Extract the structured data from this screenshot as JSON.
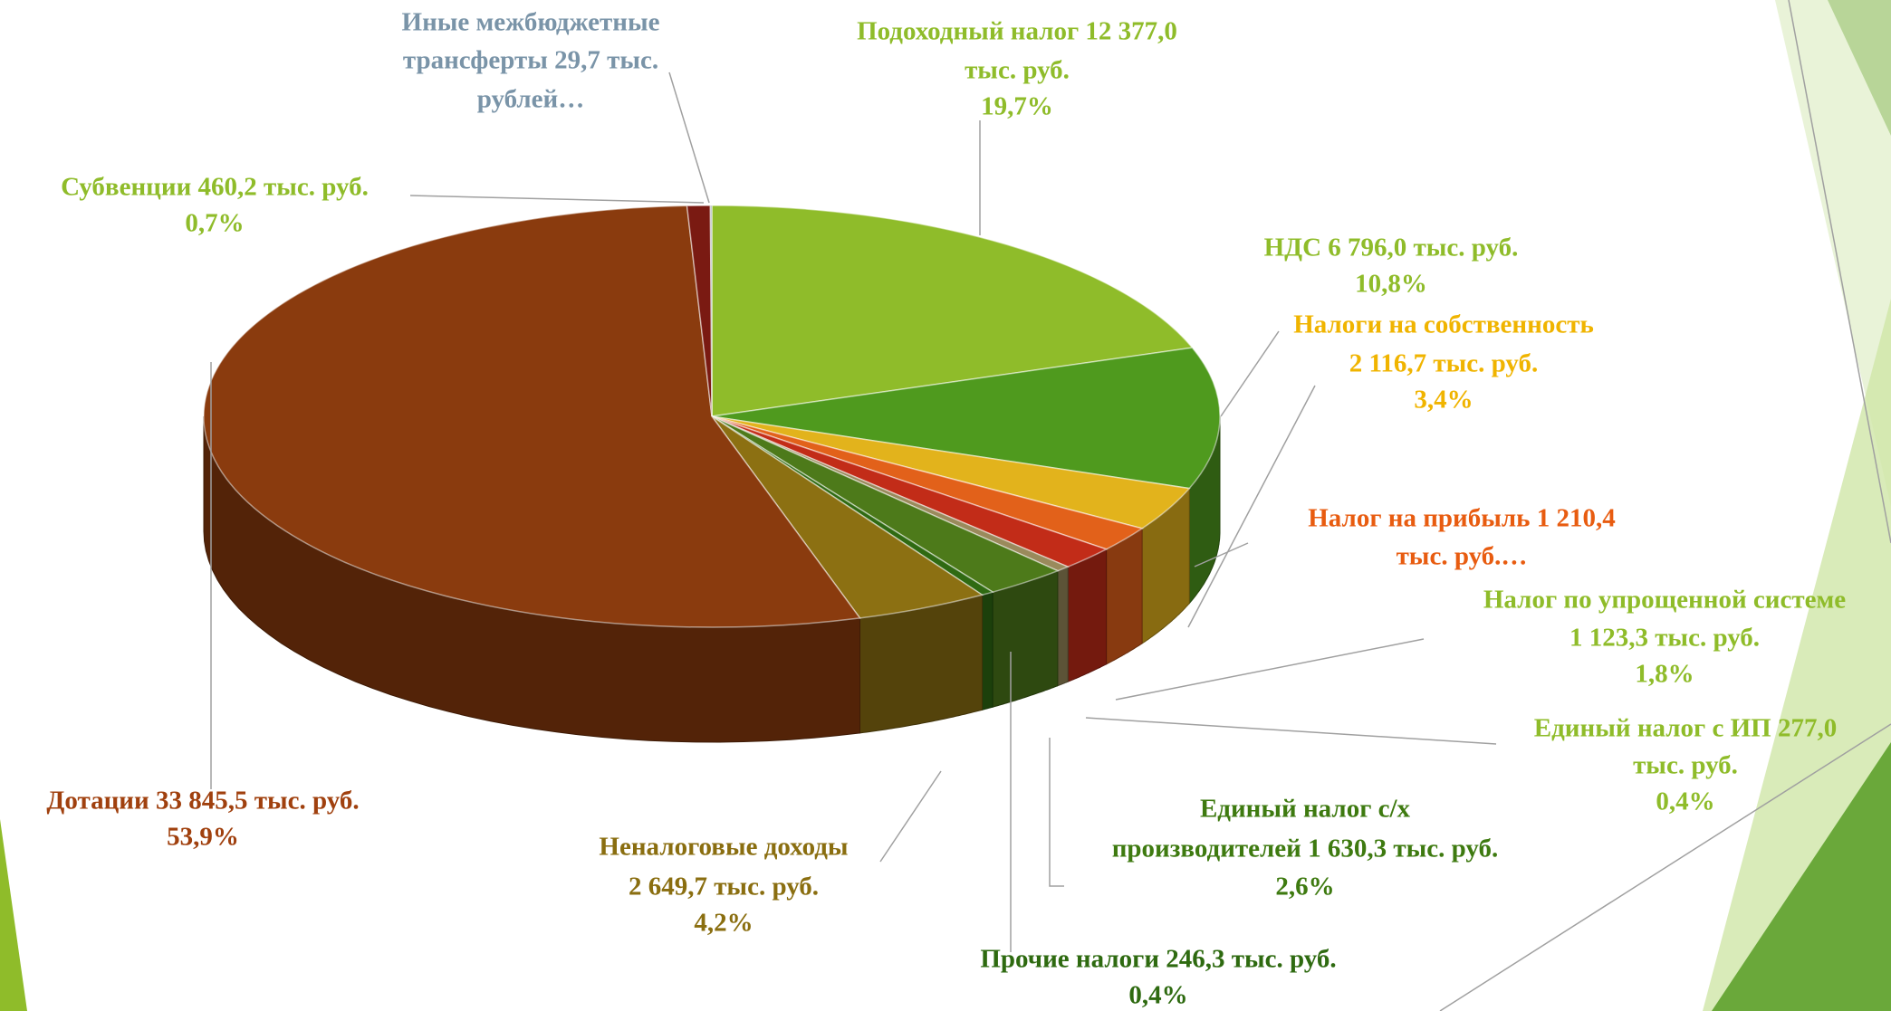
{
  "chart_data": {
    "type": "pie3d",
    "categories": [
      "Подоходный налог",
      "НДС",
      "Налоги на собственность",
      "Налог на прибыль",
      "Налог по упрощенной системе",
      "Единый налог с ИП",
      "Единый налог с/х производителей",
      "Прочие налоги",
      "Неналоговые доходы",
      "Дотации",
      "Субвенции",
      "Иные межбюджетные трансферты"
    ],
    "values": [
      12377.0,
      6796.0,
      2116.7,
      1210.4,
      1123.3,
      277.0,
      1630.3,
      246.3,
      2649.7,
      33845.5,
      460.2,
      29.7
    ],
    "colors": [
      "#8fbc2a",
      "#4f9a1e",
      "#e2b31c",
      "#e2611a",
      "#c22c18",
      "#9a8a5c",
      "#4d7a1a",
      "#2f6a12",
      "#8c7012",
      "#8a3b0e",
      "#7a1a12",
      "#9aa8b4"
    ],
    "label_colors": [
      "#8fbc2a",
      "#8fbc2a",
      "#f0b400",
      "#e85c10",
      "#8fbc2a",
      "#8fbc2a",
      "#3e7a10",
      "#2e6a10",
      "#8a6e10",
      "#a0400e",
      "#8fbc2a",
      "#7a94a8"
    ],
    "value_labels": [
      [
        "Подоходный налог 12 377,0",
        "тыс. руб.",
        "19,7%"
      ],
      [
        "НДС 6 796,0 тыс. руб.",
        "10,8%"
      ],
      [
        "Налоги на собственность",
        "2 116,7 тыс. руб.",
        "3,4%"
      ],
      [
        "Налог на прибыль 1 210,4",
        "тыс. руб.…"
      ],
      [
        "Налог по упрощенной системе",
        "1 123,3 тыс. руб.",
        "1,8%"
      ],
      [
        "Единый налог с ИП 277,0",
        "тыс. руб.",
        "0,4%"
      ],
      [
        "Единый налог с/х",
        "производителей 1 630,3 тыс. руб.",
        "2,6%"
      ],
      [
        "Прочие налоги 246,3 тыс. руб.",
        "0,4%"
      ],
      [
        "Неналоговые доходы",
        "2 649,7 тыс. руб.",
        "4,2%"
      ],
      [
        "Дотации 33 845,5 тыс. руб.",
        "53,9%"
      ],
      [
        "Субвенции 460,2 тыс. руб.",
        "0,7%"
      ],
      [
        "Иные межбюджетные",
        "трансферты 29,7 тыс.",
        "рублей…"
      ]
    ]
  }
}
